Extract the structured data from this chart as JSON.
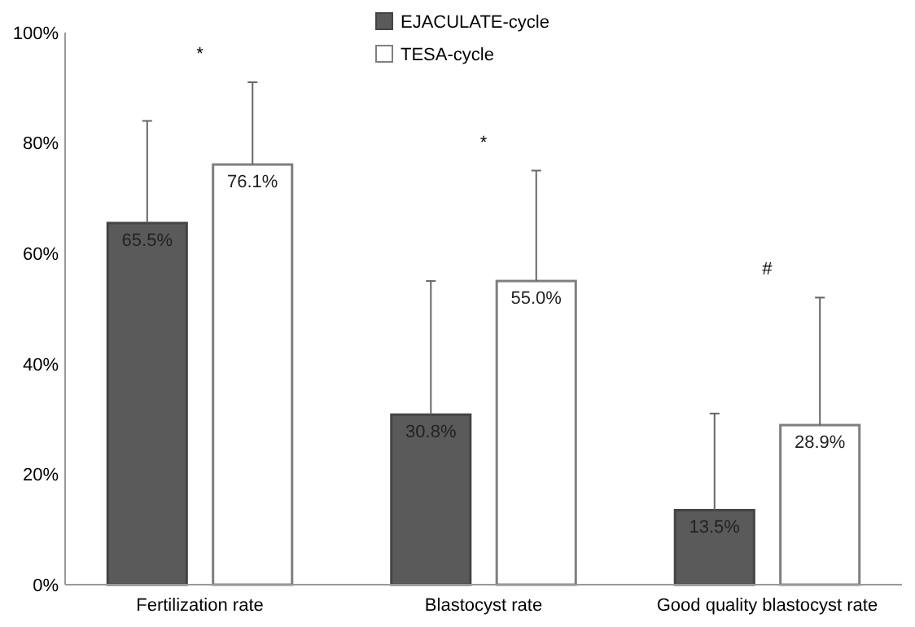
{
  "chart_data": {
    "type": "bar",
    "categories": [
      "Fertilization rate",
      "Blastocyst rate",
      "Good quality blastocyst rate"
    ],
    "series": [
      {
        "name": "EJACULATE-cycle",
        "color": "#5a5a5a",
        "values": [
          65.5,
          30.8,
          13.5
        ],
        "value_labels": [
          "65.5%",
          "30.8%",
          "13.5%"
        ],
        "errors": [
          [
            65.5,
            84
          ],
          [
            30.8,
            55
          ],
          [
            13.5,
            31
          ]
        ]
      },
      {
        "name": "TESA-cycle",
        "color": "#ffffff",
        "values": [
          76.1,
          55.0,
          28.9
        ],
        "value_labels": [
          "76.1%",
          "55.0%",
          "28.9%"
        ],
        "errors": [
          [
            76.1,
            91
          ],
          [
            55.0,
            75
          ],
          [
            28.9,
            52
          ]
        ]
      }
    ],
    "ylim": [
      0,
      100
    ],
    "yticks": [
      {
        "value": 0,
        "label": "0%"
      },
      {
        "value": 20,
        "label": "20%"
      },
      {
        "value": 40,
        "label": "40%"
      },
      {
        "value": 60,
        "label": "60%"
      },
      {
        "value": 80,
        "label": "80%"
      },
      {
        "value": 100,
        "label": "100%"
      }
    ],
    "grid": false,
    "legend": "top",
    "annotations": [
      "*",
      "*",
      "#"
    ]
  }
}
